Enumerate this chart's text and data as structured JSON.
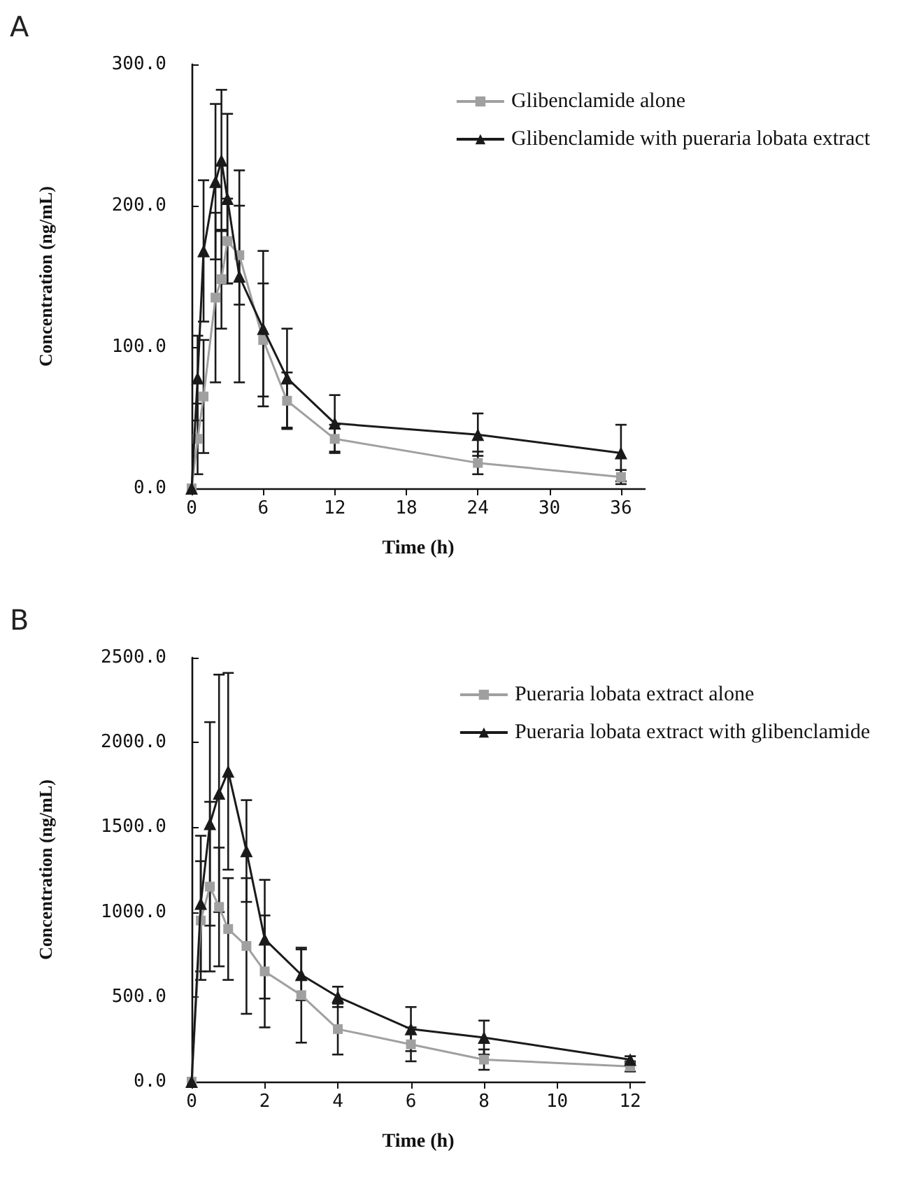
{
  "chart_data": [
    {
      "type": "line",
      "title": "A",
      "xlabel": "Time (h)",
      "ylabel": "Concentration (ng/mL)",
      "x": [
        0,
        0.5,
        1,
        2,
        2.5,
        3,
        4,
        6,
        8,
        12,
        24,
        36
      ],
      "xlim": [
        0,
        38
      ],
      "xticks": [
        0,
        6,
        12,
        18,
        24,
        30,
        36
      ],
      "ylim": [
        0,
        300
      ],
      "yticks": [
        {
          "value": 0,
          "label": "0.0"
        },
        {
          "value": 100,
          "label": "100.0"
        },
        {
          "value": 200,
          "label": "200.0"
        },
        {
          "value": 300,
          "label": "300.0"
        }
      ],
      "legend": "top right",
      "grid": false,
      "series": [
        {
          "name": "Glibenclamide alone",
          "color": "#a0a0a0",
          "marker": "square",
          "values": [
            0,
            35,
            65,
            135,
            148,
            175,
            165,
            105,
            62,
            35,
            18,
            8
          ],
          "errors": [
            null,
            25,
            40,
            60,
            35,
            30,
            35,
            40,
            20,
            10,
            8,
            5
          ]
        },
        {
          "name": "Glibenclamide with pueraria lobata extract",
          "color": "#1a1a1a",
          "marker": "triangle",
          "values": [
            0,
            78,
            168,
            217,
            232,
            205,
            150,
            113,
            78,
            46,
            38,
            25
          ],
          "errors": [
            null,
            30,
            50,
            55,
            50,
            60,
            75,
            55,
            35,
            20,
            15,
            20
          ]
        }
      ]
    },
    {
      "type": "line",
      "title": "B",
      "xlabel": "Time (h)",
      "ylabel": "Concentration (ng/mL)",
      "x": [
        0,
        0.25,
        0.5,
        0.75,
        1,
        1.5,
        2,
        3,
        4,
        6,
        8,
        12
      ],
      "xlim": [
        0,
        12.4
      ],
      "xticks": [
        0,
        2,
        4,
        6,
        8,
        10,
        12
      ],
      "ylim": [
        0,
        2500
      ],
      "yticks": [
        {
          "value": 0,
          "label": "0.0"
        },
        {
          "value": 500,
          "label": "500.0"
        },
        {
          "value": 1000,
          "label": "1000.0"
        },
        {
          "value": 1500,
          "label": "1500.0"
        },
        {
          "value": 2000,
          "label": "2000.0"
        },
        {
          "value": 2500,
          "label": "2500.0"
        }
      ],
      "legend": "top right",
      "grid": false,
      "series": [
        {
          "name": "Pueraria lobata extract alone",
          "color": "#a0a0a0",
          "marker": "square",
          "values": [
            0,
            950,
            1150,
            1030,
            900,
            800,
            650,
            510,
            310,
            220,
            130,
            90
          ],
          "errors": [
            null,
            350,
            500,
            350,
            300,
            400,
            330,
            280,
            150,
            100,
            60,
            30
          ]
        },
        {
          "name": "Pueraria lobata extract with glibenclamide",
          "color": "#1a1a1a",
          "marker": "triangle",
          "values": [
            0,
            1050,
            1520,
            1700,
            1830,
            1360,
            840,
            630,
            500,
            310,
            260,
            130
          ],
          "errors": [
            null,
            400,
            600,
            700,
            580,
            300,
            350,
            150,
            60,
            130,
            100,
            20
          ]
        }
      ]
    }
  ]
}
